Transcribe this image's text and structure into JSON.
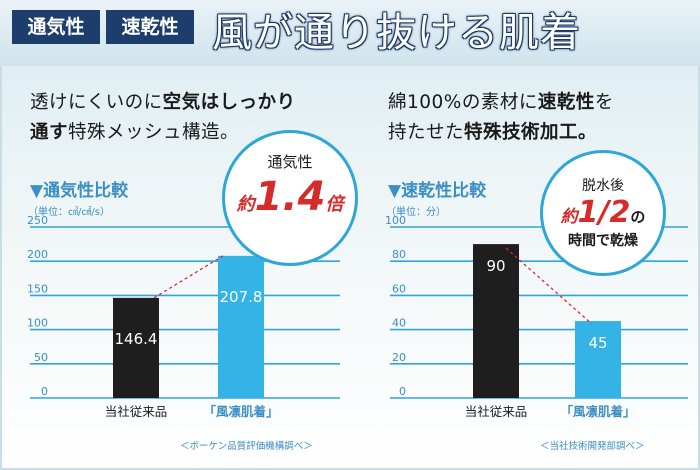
{
  "header": {
    "tags": [
      "通気性",
      "速乾性"
    ],
    "title": "風が通り抜ける肌着"
  },
  "left": {
    "desc_line1_a": "透けにくいのに",
    "desc_line1_b": "空気はしっかり",
    "desc_line2_a": "通す",
    "desc_line2_b": "特殊メッシュ構造。",
    "section_title": "▼通気性比較",
    "unit": "（単位：㎤/㎠/s）",
    "badge_line1": "通気性",
    "badge_yaku": "約",
    "badge_num": "1.4",
    "badge_unit": "倍",
    "source": "＜ボーケン品質評価機構調べ＞"
  },
  "right": {
    "desc_line1_a": "綿100%の素材に",
    "desc_line1_b": "速乾性",
    "desc_line1_c": "を",
    "desc_line2_a": "持たせた",
    "desc_line2_b": "特殊技術加工。",
    "section_title": "▼速乾性比較",
    "unit": "（単位：分）",
    "badge_line1": "脱水後",
    "badge_yaku": "約",
    "badge_num": "1/2",
    "badge_no": "の",
    "badge_line3": "時間で乾燥",
    "source": "＜当社技術開発部調べ＞"
  },
  "colors": {
    "accent": "#2ea6d8",
    "dark_bar": "#1e1e1e",
    "highlight_bar": "#33b3e6",
    "emphasis_red": "#d62b2b",
    "navy": "#1d3d6c"
  },
  "chart_data": [
    {
      "type": "bar",
      "title": "▼通気性比較",
      "ylabel": "（単位：㎤/㎠/s）",
      "categories": [
        "当社従来品",
        "「風凛肌着」"
      ],
      "values": [
        146.4,
        207.8
      ],
      "value_labels": [
        "146.4",
        "207.8"
      ],
      "yticks": [
        0,
        50,
        100,
        150,
        200,
        250
      ],
      "ylim": [
        0,
        250
      ],
      "grid": true
    },
    {
      "type": "bar",
      "title": "▼速乾性比較",
      "ylabel": "（単位：分）",
      "categories": [
        "当社従来品",
        "「風凛肌着」"
      ],
      "values": [
        90,
        45
      ],
      "value_labels": [
        "90",
        "45"
      ],
      "yticks": [
        0,
        20,
        40,
        60,
        80,
        100
      ],
      "ylim": [
        0,
        100
      ],
      "grid": true
    }
  ]
}
